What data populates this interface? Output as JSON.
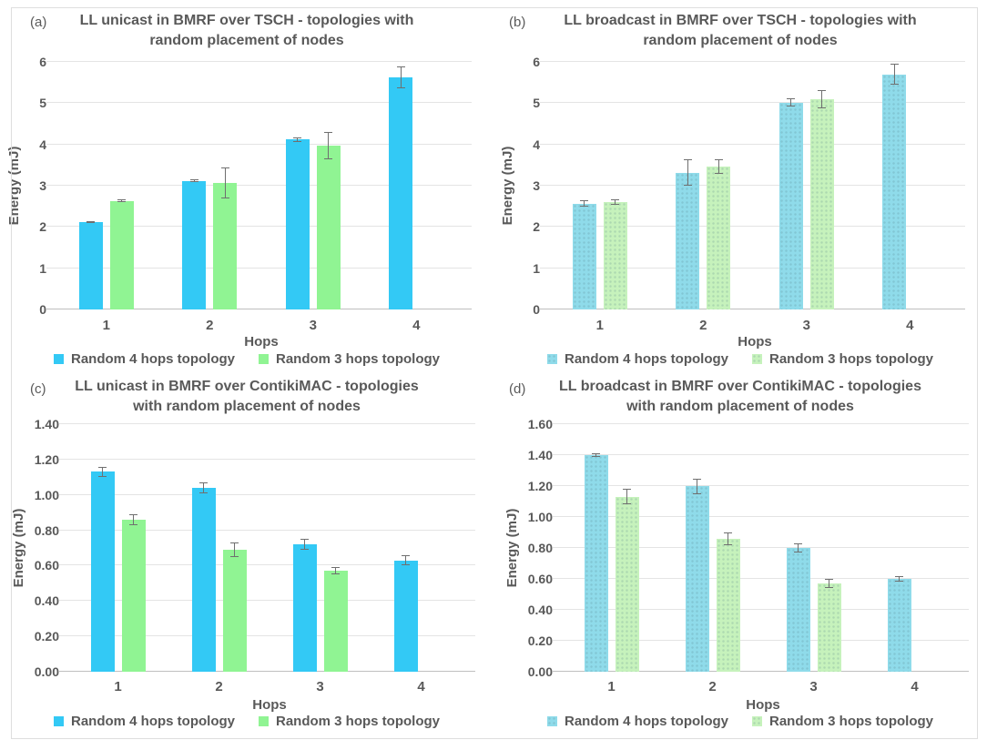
{
  "colors": {
    "series_blue_solid": "#33C9F5",
    "series_green_solid": "#90F493",
    "series_blue_pattern": "#8FDBEA",
    "series_green_pattern": "#C6F2BC",
    "grid": "#E4E4E4",
    "axis_line": "#BFBFBF",
    "text": "#595959",
    "error_bar": "#6F6F6F",
    "figure_border": "#DEDEDE",
    "background": "#FFFFFF"
  },
  "chart_data": [
    {
      "panel": "a",
      "label": "(a)",
      "type": "bar",
      "title": "LL unicast in BMRF over TSCH - topologies with random placement of nodes",
      "title_lines": [
        "LL unicast in BMRF over TSCH - topologies with",
        "random placement of nodes"
      ],
      "xlabel": "Hops",
      "ylabel": "Energy (mJ)",
      "categories": [
        "1",
        "2",
        "3",
        "4"
      ],
      "ylim": [
        0,
        6
      ],
      "ytick_labels": [
        "0",
        "1",
        "2",
        "3",
        "4",
        "5",
        "6"
      ],
      "grid": true,
      "legend_position": "bottom",
      "fill": "solid",
      "series": [
        {
          "name": "Random 4 hops topology",
          "color": "blue",
          "values": [
            2.12,
            3.12,
            4.12,
            5.62
          ],
          "errors": [
            0.03,
            0.04,
            0.05,
            0.26
          ]
        },
        {
          "name": "Random 3 hops topology",
          "color": "green",
          "values": [
            2.63,
            3.07,
            3.97,
            null
          ],
          "errors": [
            0.03,
            0.37,
            0.33,
            null
          ]
        }
      ]
    },
    {
      "panel": "b",
      "label": "(b)",
      "type": "bar",
      "title": "LL broadcast in BMRF over TSCH - topologies with random placement of nodes",
      "title_lines": [
        "LL broadcast in BMRF over TSCH - topologies with",
        "random placement of nodes"
      ],
      "xlabel": "Hops",
      "ylabel": "Energy (mJ)",
      "categories": [
        "1",
        "2",
        "3",
        "4"
      ],
      "ylim": [
        0,
        6
      ],
      "ytick_labels": [
        "0",
        "1",
        "2",
        "3",
        "4",
        "5",
        "6"
      ],
      "grid": true,
      "legend_position": "bottom",
      "fill": "pattern",
      "series": [
        {
          "name": "Random 4 hops topology",
          "color": "blue",
          "values": [
            2.57,
            3.32,
            5.01,
            5.7
          ],
          "errors": [
            0.07,
            0.33,
            0.1,
            0.26
          ]
        },
        {
          "name": "Random 3 hops topology",
          "color": "green",
          "values": [
            2.6,
            3.47,
            5.1,
            null
          ],
          "errors": [
            0.06,
            0.18,
            0.22,
            null
          ]
        }
      ]
    },
    {
      "panel": "c",
      "label": "(c)",
      "type": "bar",
      "title": "LL unicast in BMRF over ContikiMAC - topologies with random placement of nodes",
      "title_lines": [
        "LL unicast in BMRF over ContikiMAC - topologies",
        "with random placement of nodes"
      ],
      "xlabel": "Hops",
      "ylabel": "Energy (mJ)",
      "categories": [
        "1",
        "2",
        "3",
        "4"
      ],
      "ylim": [
        0,
        1.4
      ],
      "ytick_labels": [
        "0.00",
        "0.20",
        "0.40",
        "0.60",
        "0.80",
        "1.00",
        "1.20",
        "1.40"
      ],
      "grid": true,
      "legend_position": "bottom",
      "fill": "solid",
      "series": [
        {
          "name": "Random 4 hops topology",
          "color": "blue",
          "values": [
            1.13,
            1.04,
            0.72,
            0.63
          ],
          "errors": [
            0.03,
            0.03,
            0.03,
            0.03
          ]
        },
        {
          "name": "Random 3 hops topology",
          "color": "green",
          "values": [
            0.86,
            0.69,
            0.57,
            null
          ],
          "errors": [
            0.03,
            0.04,
            0.02,
            null
          ]
        }
      ]
    },
    {
      "panel": "d",
      "label": "(d)",
      "type": "bar",
      "title": "LL broadcast in BMRF over ContikiMAC - topologies with random placement of nodes",
      "title_lines": [
        "LL broadcast in BMRF over ContikiMAC - topologies",
        "with random placement of nodes"
      ],
      "xlabel": "Hops",
      "ylabel": "Energy (mJ)",
      "categories": [
        "1",
        "2",
        "3",
        "4"
      ],
      "ylim": [
        0,
        1.6
      ],
      "ytick_labels": [
        "0.00",
        "0.20",
        "0.40",
        "0.60",
        "0.80",
        "1.00",
        "1.20",
        "1.40",
        "1.60"
      ],
      "grid": true,
      "legend_position": "bottom",
      "fill": "pattern",
      "series": [
        {
          "name": "Random 4 hops topology",
          "color": "blue",
          "values": [
            1.4,
            1.2,
            0.8,
            0.6
          ],
          "errors": [
            0.01,
            0.05,
            0.03,
            0.02
          ]
        },
        {
          "name": "Random 3 hops topology",
          "color": "green",
          "values": [
            1.13,
            0.86,
            0.57,
            null
          ],
          "errors": [
            0.05,
            0.04,
            0.03,
            null
          ]
        }
      ]
    }
  ]
}
